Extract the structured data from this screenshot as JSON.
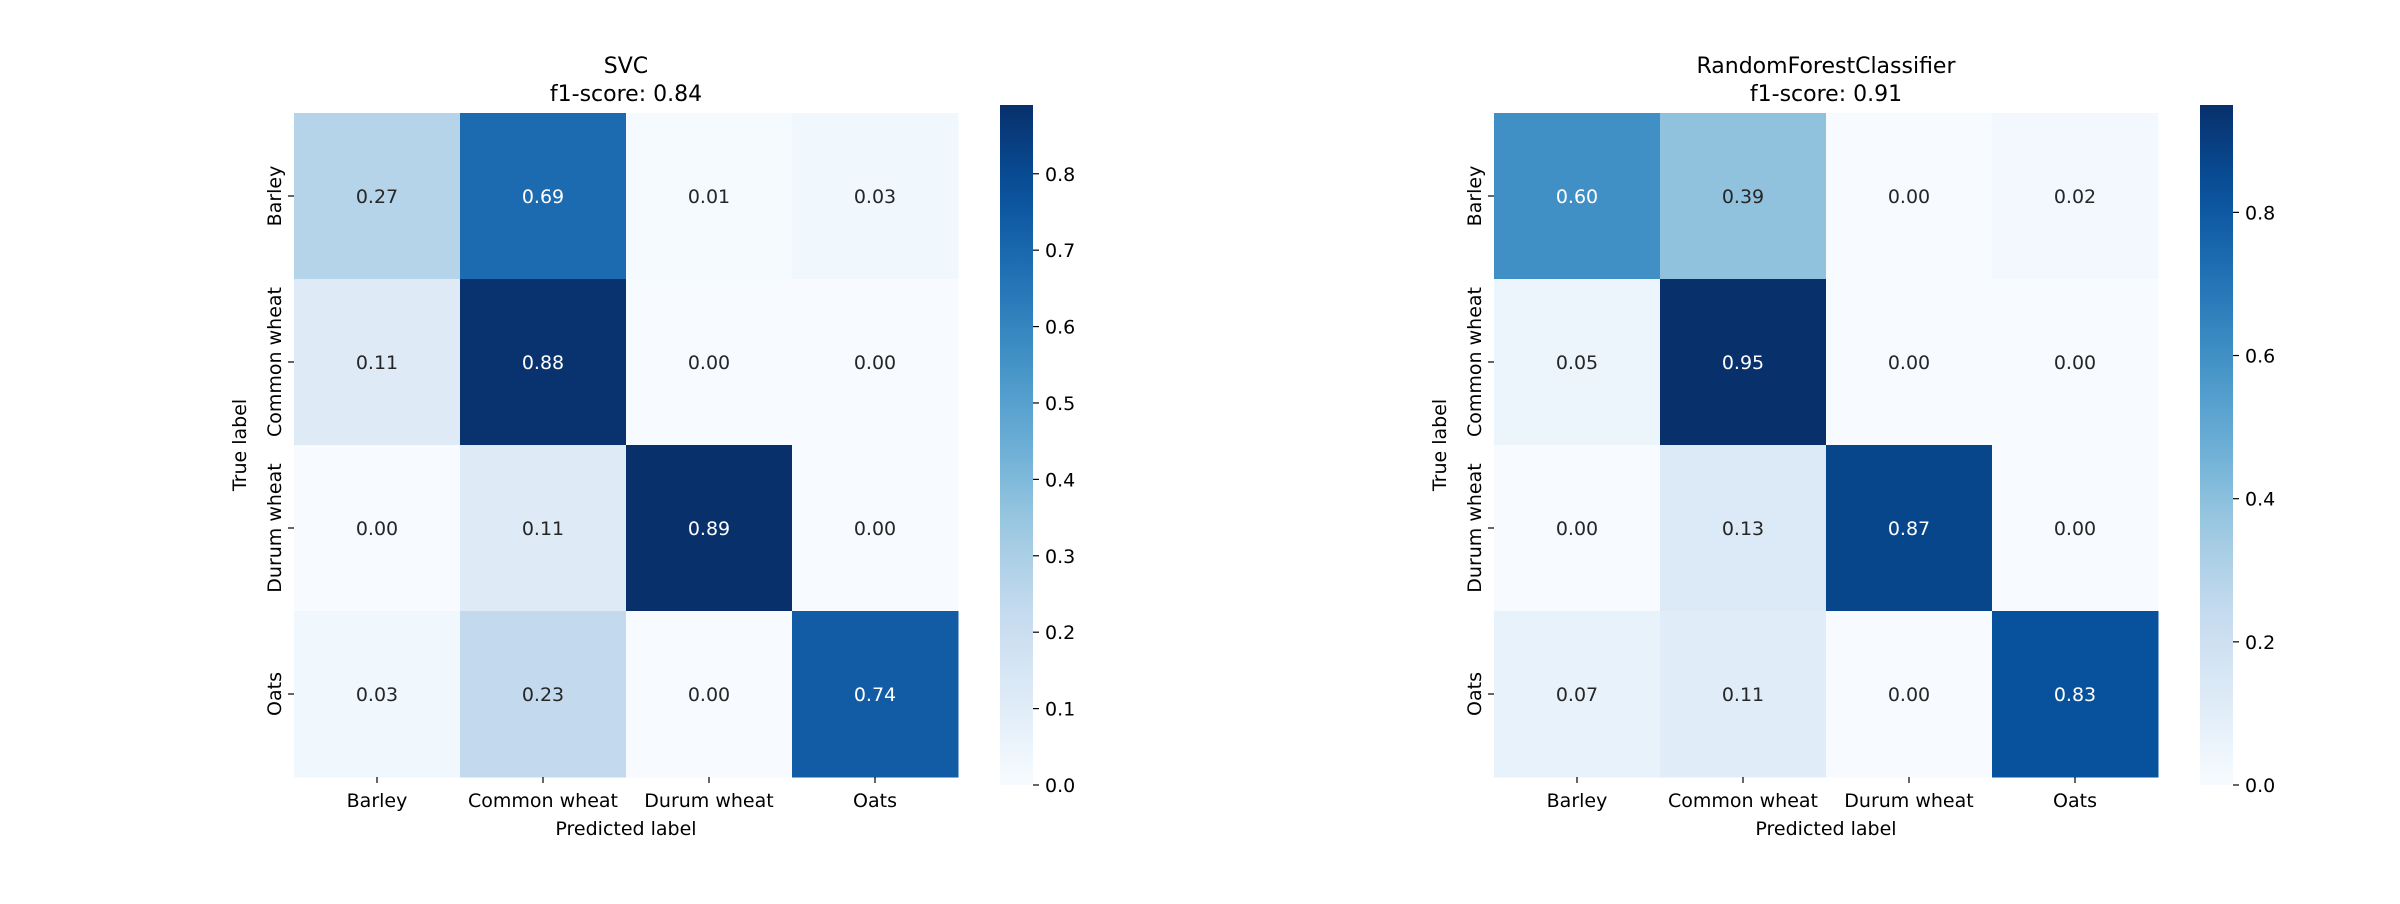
{
  "chart_data": [
    {
      "type": "heatmap",
      "title": "SVC",
      "subtitle": "f1-score: 0.84",
      "xlabel": "Predicted label",
      "ylabel": "True label",
      "x_categories": [
        "Barley",
        "Common wheat",
        "Durum wheat",
        "Oats"
      ],
      "y_categories": [
        "Barley",
        "Common wheat",
        "Durum wheat",
        "Oats"
      ],
      "values": [
        [
          0.27,
          0.69,
          0.01,
          0.03
        ],
        [
          0.11,
          0.88,
          0.0,
          0.0
        ],
        [
          0.0,
          0.11,
          0.89,
          0.0
        ],
        [
          0.03,
          0.23,
          0.0,
          0.74
        ]
      ],
      "value_labels": [
        [
          "0.27",
          "0.69",
          "0.01",
          "0.03"
        ],
        [
          "0.11",
          "0.88",
          "0.00",
          "0.00"
        ],
        [
          "0.00",
          "0.11",
          "0.89",
          "0.00"
        ],
        [
          "0.03",
          "0.23",
          "0.00",
          "0.74"
        ]
      ],
      "colormap": "Blues",
      "color_range": [
        0.0,
        0.89
      ],
      "colorbar_ticks": [
        {
          "value": 0.0,
          "label": "0.0"
        },
        {
          "value": 0.1,
          "label": "0.1"
        },
        {
          "value": 0.2,
          "label": "0.2"
        },
        {
          "value": 0.3,
          "label": "0.3"
        },
        {
          "value": 0.4,
          "label": "0.4"
        },
        {
          "value": 0.5,
          "label": "0.5"
        },
        {
          "value": 0.6,
          "label": "0.6"
        },
        {
          "value": 0.7,
          "label": "0.7"
        },
        {
          "value": 0.8,
          "label": "0.8"
        }
      ]
    },
    {
      "type": "heatmap",
      "title": "RandomForestClassifier",
      "subtitle": "f1-score: 0.91",
      "xlabel": "Predicted label",
      "ylabel": "True label",
      "x_categories": [
        "Barley",
        "Common wheat",
        "Durum wheat",
        "Oats"
      ],
      "y_categories": [
        "Barley",
        "Common wheat",
        "Durum wheat",
        "Oats"
      ],
      "values": [
        [
          0.6,
          0.39,
          0.0,
          0.02
        ],
        [
          0.05,
          0.95,
          0.0,
          0.0
        ],
        [
          0.0,
          0.13,
          0.87,
          0.0
        ],
        [
          0.07,
          0.11,
          0.0,
          0.83
        ]
      ],
      "value_labels": [
        [
          "0.60",
          "0.39",
          "0.00",
          "0.02"
        ],
        [
          "0.05",
          "0.95",
          "0.00",
          "0.00"
        ],
        [
          "0.00",
          "0.13",
          "0.87",
          "0.00"
        ],
        [
          "0.07",
          "0.11",
          "0.00",
          "0.83"
        ]
      ],
      "colormap": "Blues",
      "color_range": [
        0.0,
        0.95
      ],
      "colorbar_ticks": [
        {
          "value": 0.0,
          "label": "0.0"
        },
        {
          "value": 0.2,
          "label": "0.2"
        },
        {
          "value": 0.4,
          "label": "0.4"
        },
        {
          "value": 0.6,
          "label": "0.6"
        },
        {
          "value": 0.8,
          "label": "0.8"
        }
      ]
    }
  ]
}
